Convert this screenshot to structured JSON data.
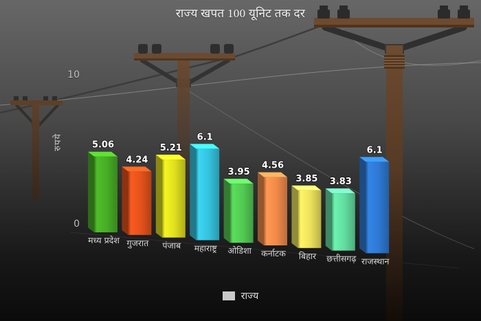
{
  "title": "राज्य खपत 100 यूनिट तक दर",
  "y_axis": {
    "label": "रुपये",
    "tick_top": "10",
    "tick_bottom": "0"
  },
  "legend": {
    "label": "राज्य",
    "swatch_color": "#c9c9c9"
  },
  "chart_data": {
    "type": "bar",
    "title": "राज्य खपत 100 यूनिट तक दर",
    "xlabel": "",
    "ylabel": "रुपये",
    "ylim": [
      0,
      10
    ],
    "grid": false,
    "legend_position": "bottom",
    "categories": [
      "मध्य प्रदेश",
      "गुजरात",
      "पंजाब",
      "महाराष्ट्र",
      "ओडिशा",
      "कर्नाटक",
      "बिहार",
      "छत्तीसगढ़",
      "राजस्थान"
    ],
    "series": [
      {
        "name": "राज्य",
        "values": [
          5.06,
          4.24,
          5.21,
          6.1,
          3.95,
          4.56,
          3.85,
          3.83,
          6.1
        ]
      }
    ],
    "value_labels": [
      "5.06",
      "4.24",
      "5.21",
      "6.1",
      "3.95",
      "4.56",
      "3.85",
      "3.83",
      "6.1"
    ],
    "bar_colors": [
      "#47ad25",
      "#e4521b",
      "#dfdf1f",
      "#35c3de",
      "#53ca53",
      "#f08a4a",
      "#ece05c",
      "#62dda0",
      "#2e79d3"
    ]
  },
  "colors": {
    "background_top": "#676767",
    "background_bottom": "#0b0b0b",
    "pole_wood": "#6b4a31",
    "wire_dark": "#3a3a3a",
    "wire_light": "#a5a5a5",
    "text_primary": "#f2f2f2",
    "text_secondary": "#d6d6d6"
  }
}
